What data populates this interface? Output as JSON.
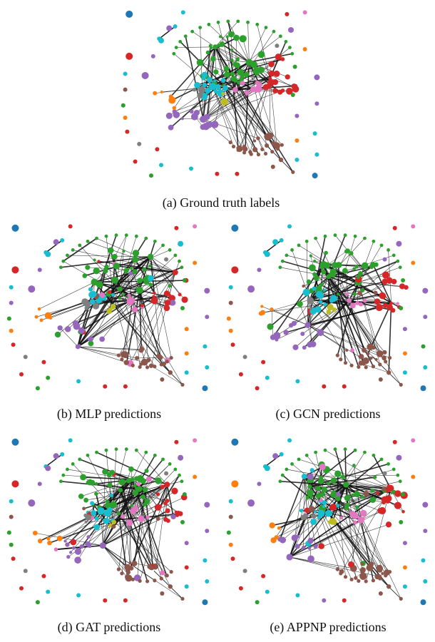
{
  "palette": {
    "blue": "#1f77b4",
    "orange": "#ff7f0e",
    "green": "#2ca02c",
    "red": "#d62728",
    "purple": "#9467bd",
    "brown": "#8c564b",
    "pink": "#e377c2",
    "gray": "#7f7f7f",
    "olive": "#bcbd22",
    "cyan": "#17becf"
  },
  "panels": [
    {
      "id": "a",
      "caption": "(a) Ground truth labels"
    },
    {
      "id": "b",
      "caption": "(b) MLP predictions"
    },
    {
      "id": "c",
      "caption": "(c) GCN predictions"
    },
    {
      "id": "d",
      "caption": "(d) GAT predictions"
    },
    {
      "id": "e",
      "caption": "(e) APPNP predictions"
    }
  ]
}
